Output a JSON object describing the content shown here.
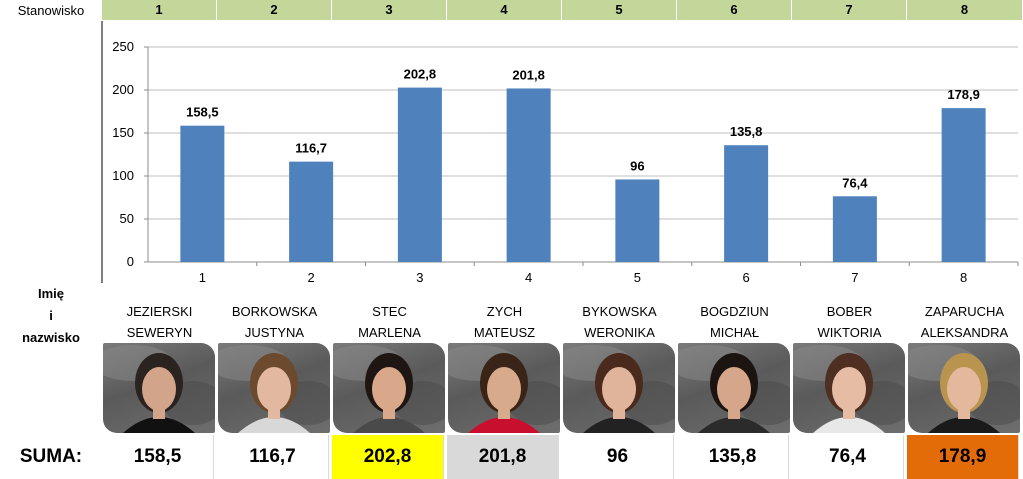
{
  "header": {
    "stanowisko_label": "Stanowisko",
    "name_label_lines": [
      "Imię",
      "i",
      "nazwisko"
    ],
    "suma_label": "SUMA:"
  },
  "stations": [
    "1",
    "2",
    "3",
    "4",
    "5",
    "6",
    "7",
    "8"
  ],
  "participants": [
    {
      "surname": "JEZIERSKI",
      "first": "SEWERYN",
      "score": "158,5",
      "hair": "#2a231f",
      "shirt": "#111111",
      "skin": "#d2a48a"
    },
    {
      "surname": "BORKOWSKA",
      "first": "JUSTYNA",
      "score": "116,7",
      "hair": "#6b4a2e",
      "shirt": "#d8d8d8",
      "skin": "#e2b8a0"
    },
    {
      "surname": "STEC",
      "first": "MARLENA",
      "score": "202,8",
      "hair": "#1e1612",
      "shirt": "#4a4a4a",
      "skin": "#d9a88a"
    },
    {
      "surname": "ZYCH",
      "first": "MATEUSZ",
      "score": "201,8",
      "hair": "#3a2418",
      "shirt": "#c8102e",
      "skin": "#d8aa8c"
    },
    {
      "surname": "BYKOWSKA",
      "first": "WERONIKA",
      "score": "96",
      "hair": "#4a2a1c",
      "shirt": "#222222",
      "skin": "#e0b49a"
    },
    {
      "surname": "BOGDZIUN",
      "first": "MICHAŁ",
      "score": "135,8",
      "hair": "#1b1410",
      "shirt": "#2b2b2b",
      "skin": "#d6a68a"
    },
    {
      "surname": "BOBER",
      "first": "WIKTORIA",
      "score": "76,4",
      "hair": "#4e2f22",
      "shirt": "#e8e8e8",
      "skin": "#e6bca4"
    },
    {
      "surname": "ZAPARUCHA",
      "first": "ALEKSANDRA",
      "score": "178,9",
      "hair": "#b8944e",
      "shirt": "#1a1a1a",
      "skin": "#e4b89c"
    }
  ],
  "sum_highlights": [
    "#ffffff",
    "#ffffff",
    "#ffff00",
    "#d9d9d9",
    "#ffffff",
    "#ffffff",
    "#ffffff",
    "#e36c09"
  ],
  "chart_data": {
    "type": "bar",
    "categories": [
      "1",
      "2",
      "3",
      "4",
      "5",
      "6",
      "7",
      "8"
    ],
    "values": [
      158.5,
      116.7,
      202.8,
      201.8,
      96,
      135.8,
      76.4,
      178.9
    ],
    "data_labels": [
      "158,5",
      "116,7",
      "202,8",
      "201,8",
      "96",
      "135,8",
      "76,4",
      "178,9"
    ],
    "yticks": [
      "0",
      "50",
      "100",
      "150",
      "200",
      "250"
    ],
    "ylim": [
      0,
      250
    ],
    "grid": true,
    "bar_color": "#4f81bd",
    "title": "",
    "xlabel": "",
    "ylabel": ""
  }
}
